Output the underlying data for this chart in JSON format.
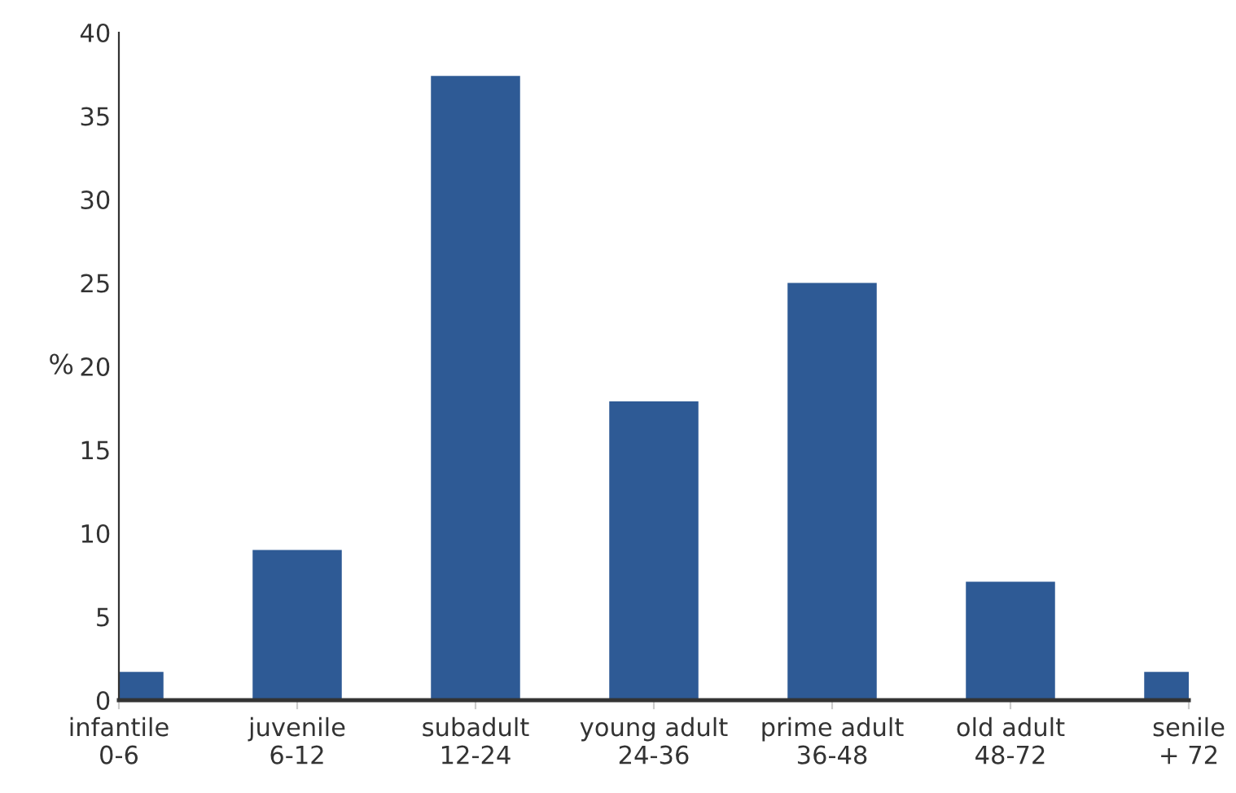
{
  "chart_data": {
    "type": "bar",
    "ylabel": "%",
    "categories": [
      "infantile\n0-6",
      "juvenile\n6-12",
      "subadult\n12-24",
      "young adult\n24-36",
      "prime adult\n36-48",
      "old adult\n48-72",
      "senile\n+ 72"
    ],
    "values": [
      1.7,
      9.0,
      37.4,
      17.9,
      25.0,
      7.1,
      1.7
    ],
    "color": "#2e5a95",
    "ylim": [
      0,
      40
    ],
    "yticks": [
      0,
      5,
      10,
      15,
      20,
      25,
      30,
      35,
      40
    ],
    "grid": false
  }
}
